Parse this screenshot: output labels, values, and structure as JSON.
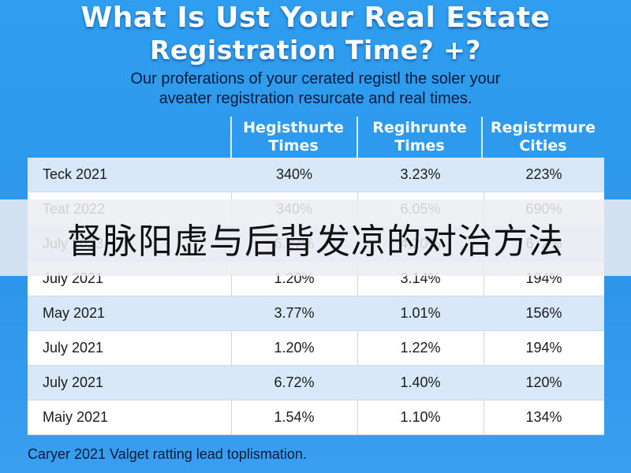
{
  "title_line1": "What Is Ust Your Real Estate",
  "title_line2": "Registration Time? +?",
  "subtitle_line1": "Our proferations of your cerated registl the soler your",
  "subtitle_line2": "aveater registration resurcate and real times.",
  "banner_text": "督脉阳虚与后背发凉的对治方法",
  "footer": "Caryer 2021 Valget ratting lead toplismation.",
  "colors": {
    "background": "#2f9ef0",
    "table_row_alt": "#d8e8f8",
    "table_row": "#ffffff",
    "banner": "#eceef2"
  },
  "chart_data": {
    "type": "table",
    "columns": [
      "",
      "Hegisthurte\nTimes",
      "Regihrunte\nTimes",
      "Registrmure\nCities"
    ],
    "rows": [
      [
        "Teck 2021",
        "340%",
        "3.23%",
        "223%"
      ],
      [
        "Teat 2022",
        "340%",
        "6.05%",
        "690%"
      ],
      [
        "July 2023",
        "6.27%",
        "4.20%",
        "672%"
      ],
      [
        "July 2021",
        "1.20%",
        "3.14%",
        "194%"
      ],
      [
        "May 2021",
        "3.77%",
        "1.01%",
        "156%"
      ],
      [
        "July 2021",
        "1.20%",
        "1.22%",
        "194%"
      ],
      [
        "July 2021",
        "6.72%",
        "1.40%",
        "120%"
      ],
      [
        "Maiy 2021",
        "1.54%",
        "1.10%",
        "134%"
      ]
    ]
  }
}
